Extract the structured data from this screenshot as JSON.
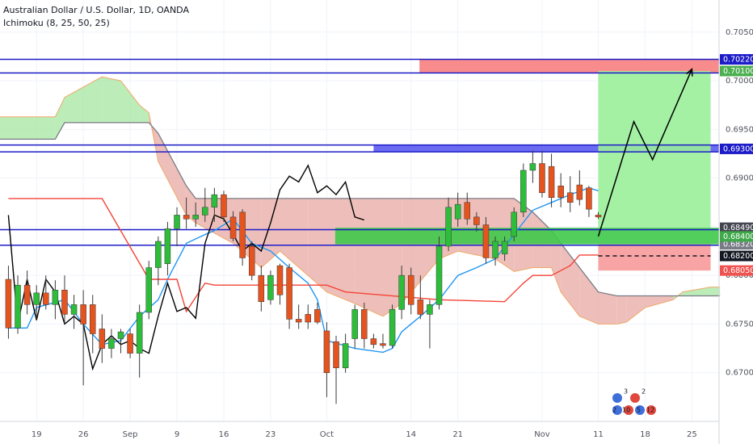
{
  "chart_data": {
    "type": "candlestick",
    "title": "Australian Dollar / U.S. Dollar, 1D, OANDA",
    "subtitle": "Ichimoku (8, 25, 50, 25)",
    "grid": true,
    "xlim": [
      -0.9,
      75.9
    ],
    "ylim": [
      0.665,
      0.7083
    ],
    "xticks": [
      {
        "value": 3,
        "label": "19"
      },
      {
        "value": 8,
        "label": "26"
      },
      {
        "value": 13,
        "label": "Sep"
      },
      {
        "value": 18,
        "label": "9"
      },
      {
        "value": 23,
        "label": "16"
      },
      {
        "value": 28,
        "label": "23"
      },
      {
        "value": 34,
        "label": "Oct"
      },
      {
        "value": 43,
        "label": "14"
      },
      {
        "value": 48,
        "label": "21"
      },
      {
        "value": 57,
        "label": "Nov"
      },
      {
        "value": 63,
        "label": "11"
      },
      {
        "value": 68,
        "label": "18"
      },
      {
        "value": 73,
        "label": "25"
      }
    ],
    "yticks": [
      {
        "value": 0.705,
        "label": "0.70500"
      },
      {
        "value": 0.7,
        "label": "0.70000"
      },
      {
        "value": 0.695,
        "label": "0.69500"
      },
      {
        "value": 0.69,
        "label": "0.69000"
      },
      {
        "value": 0.685,
        "label": "0.68500"
      },
      {
        "value": 0.68,
        "label": "0.68000"
      },
      {
        "value": 0.675,
        "label": "0.67500"
      },
      {
        "value": 0.67,
        "label": "0.67000"
      }
    ],
    "up_color": "#2dbd3a",
    "down_color": "#e5531f",
    "open": [
      0.6796,
      0.6746,
      0.679,
      0.677,
      0.6782,
      0.677,
      0.6785,
      0.676,
      0.677,
      0.677,
      0.6745,
      0.6725,
      0.6735,
      0.674,
      0.672,
      0.6762,
      0.6808,
      0.6812,
      0.6848,
      0.6862,
      0.6858,
      0.6862,
      0.687,
      0.6883,
      0.686,
      0.6865,
      0.683,
      0.68,
      0.6775,
      0.681,
      0.6808,
      0.6755,
      0.676,
      0.6765,
      0.6743,
      0.6732,
      0.6705,
      0.6735,
      0.6765,
      0.6735,
      0.673,
      0.6728,
      0.6765,
      0.68,
      0.6775,
      0.676,
      0.677,
      0.683,
      0.6858,
      0.6875,
      0.686,
      0.6852,
      0.6818,
      0.6822,
      0.684,
      0.6865,
      0.6908,
      0.6915,
      0.6912,
      0.6892,
      0.6885,
      0.6893,
      0.689,
      0.6862
    ],
    "high": [
      0.681,
      0.68,
      0.6805,
      0.679,
      0.68,
      0.6795,
      0.68,
      0.678,
      0.6785,
      0.678,
      0.676,
      0.6745,
      0.6745,
      0.6745,
      0.677,
      0.6815,
      0.684,
      0.6855,
      0.687,
      0.688,
      0.6875,
      0.689,
      0.689,
      0.6887,
      0.6866,
      0.6868,
      0.6835,
      0.681,
      0.6805,
      0.6812,
      0.6812,
      0.677,
      0.677,
      0.6772,
      0.6752,
      0.6738,
      0.674,
      0.677,
      0.6772,
      0.674,
      0.674,
      0.677,
      0.681,
      0.6808,
      0.68,
      0.6775,
      0.684,
      0.688,
      0.6885,
      0.6885,
      0.6865,
      0.686,
      0.684,
      0.684,
      0.687,
      0.6915,
      0.6928,
      0.6928,
      0.6925,
      0.6905,
      0.6902,
      0.6908,
      0.6892,
      0.6865
    ],
    "low": [
      0.6735,
      0.674,
      0.676,
      0.6755,
      0.6765,
      0.6755,
      0.675,
      0.6745,
      0.6687,
      0.672,
      0.671,
      0.6715,
      0.672,
      0.6715,
      0.6695,
      0.6755,
      0.679,
      0.68,
      0.683,
      0.6848,
      0.685,
      0.6855,
      0.6855,
      0.6855,
      0.6835,
      0.681,
      0.6795,
      0.6763,
      0.677,
      0.677,
      0.6745,
      0.6745,
      0.6745,
      0.675,
      0.6675,
      0.6668,
      0.67,
      0.6725,
      0.6725,
      0.6725,
      0.6725,
      0.6725,
      0.6755,
      0.676,
      0.6755,
      0.6725,
      0.6765,
      0.6825,
      0.685,
      0.6852,
      0.6845,
      0.6812,
      0.681,
      0.6815,
      0.6835,
      0.686,
      0.6895,
      0.688,
      0.687,
      0.687,
      0.6865,
      0.6872,
      0.686,
      0.6858
    ],
    "close": [
      0.6746,
      0.679,
      0.677,
      0.6782,
      0.677,
      0.6785,
      0.676,
      0.677,
      0.675,
      0.674,
      0.6725,
      0.6735,
      0.6742,
      0.672,
      0.6762,
      0.6808,
      0.6835,
      0.6848,
      0.6862,
      0.6858,
      0.6862,
      0.687,
      0.6883,
      0.686,
      0.6838,
      0.6818,
      0.68,
      0.6773,
      0.68,
      0.678,
      0.6755,
      0.6752,
      0.6752,
      0.6752,
      0.67,
      0.6705,
      0.673,
      0.6765,
      0.6735,
      0.6729,
      0.6728,
      0.6765,
      0.68,
      0.677,
      0.676,
      0.677,
      0.683,
      0.687,
      0.6873,
      0.6858,
      0.6852,
      0.6818,
      0.6835,
      0.6835,
      0.6865,
      0.6908,
      0.6915,
      0.6885,
      0.688,
      0.688,
      0.6875,
      0.6878,
      0.6868,
      0.686
    ],
    "cloud": {
      "up_color": "#a5e6a0",
      "down_color": "#e8aaa3",
      "a_color": "#f0a868",
      "b_color": "#787b86",
      "x": [
        -1,
        5,
        6,
        10,
        12,
        14,
        15,
        16,
        19,
        20,
        24,
        27,
        29,
        32,
        34,
        37,
        40,
        42,
        46,
        48,
        52,
        54,
        56,
        58,
        59,
        61,
        63,
        65,
        66,
        68,
        71,
        72,
        75,
        76
      ],
      "span_a": [
        0.6963,
        0.6963,
        0.6983,
        0.7004,
        0.7,
        0.6975,
        0.6967,
        0.6917,
        0.6862,
        0.6854,
        0.6833,
        0.6808,
        0.6825,
        0.68,
        0.6783,
        0.6771,
        0.6758,
        0.6771,
        0.6817,
        0.6825,
        0.6817,
        0.6804,
        0.6808,
        0.6808,
        0.6783,
        0.6758,
        0.675,
        0.675,
        0.6752,
        0.6767,
        0.6775,
        0.6783,
        0.6788,
        0.6788
      ],
      "span_b": [
        0.694,
        0.694,
        0.6957,
        0.6957,
        0.6957,
        0.6957,
        0.6957,
        0.6946,
        0.6892,
        0.6879,
        0.6879,
        0.6879,
        0.6879,
        0.6879,
        0.6879,
        0.6879,
        0.6879,
        0.6879,
        0.6879,
        0.6879,
        0.6879,
        0.6879,
        0.6865,
        0.6846,
        0.6833,
        0.6808,
        0.6783,
        0.6779,
        0.6779,
        0.6779,
        0.6779,
        0.6779,
        0.6779,
        0.6779
      ]
    },
    "lines": [
      {
        "color": "#2196f3",
        "x": [
          0,
          2,
          3,
          6,
          8,
          10,
          12,
          14,
          16,
          17,
          19,
          21,
          22,
          24,
          26,
          28,
          30,
          32,
          33,
          34,
          37,
          40,
          41,
          42,
          44,
          46,
          48,
          50,
          52,
          54,
          56,
          58,
          60,
          62,
          63
        ],
        "values": [
          0.6746,
          0.6746,
          0.6767,
          0.6775,
          0.675,
          0.6729,
          0.6733,
          0.6758,
          0.6775,
          0.6796,
          0.6833,
          0.6842,
          0.6846,
          0.6858,
          0.6833,
          0.6825,
          0.6808,
          0.6792,
          0.6775,
          0.6733,
          0.6725,
          0.6721,
          0.6725,
          0.6742,
          0.6758,
          0.6775,
          0.68,
          0.6808,
          0.6817,
          0.6842,
          0.6867,
          0.6875,
          0.6883,
          0.689,
          0.6887
        ]
      },
      {
        "color": "#f44336",
        "x": [
          0,
          10,
          15,
          18,
          19,
          21,
          22,
          34,
          36,
          46,
          53,
          55,
          56,
          58,
          60,
          61,
          63
        ],
        "values": [
          0.6879,
          0.6879,
          0.6796,
          0.6796,
          0.6763,
          0.6792,
          0.679,
          0.679,
          0.6783,
          0.6775,
          0.6773,
          0.6792,
          0.68,
          0.68,
          0.681,
          0.6821,
          0.6821
        ]
      },
      {
        "color": "#000000",
        "x": [
          0,
          1,
          2,
          3,
          4,
          5,
          6,
          7,
          8,
          9,
          10,
          11,
          12,
          13,
          14,
          15,
          16,
          17,
          18,
          19,
          20,
          21,
          22,
          23,
          24,
          25,
          26,
          27,
          28,
          29,
          30,
          31,
          32,
          33,
          34,
          35,
          36,
          37,
          38
        ],
        "values": [
          0.6862,
          0.675,
          0.6796,
          0.6754,
          0.6796,
          0.6783,
          0.675,
          0.6758,
          0.675,
          0.6704,
          0.6729,
          0.6738,
          0.6729,
          0.6733,
          0.6725,
          0.672,
          0.6758,
          0.6792,
          0.6763,
          0.6767,
          0.6756,
          0.6833,
          0.6862,
          0.6858,
          0.6842,
          0.6825,
          0.6833,
          0.6825,
          0.6854,
          0.6888,
          0.6902,
          0.6896,
          0.6913,
          0.6885,
          0.6892,
          0.6883,
          0.6896,
          0.686,
          0.6857
        ]
      }
    ],
    "zones": [
      {
        "x0": 43.9,
        "x1": 75.9,
        "low": 0.7008,
        "high": 0.7022,
        "color": "#f77f7f"
      },
      {
        "x0": 39,
        "x1": 75.9,
        "low": 0.6927,
        "high": 0.6934,
        "color": "#5b5bef"
      },
      {
        "x0": 63,
        "x1": 75,
        "low": 0.6849,
        "high": 0.701,
        "color": "#9af09a"
      },
      {
        "x0": 63,
        "x1": 75,
        "low": 0.6805,
        "high": 0.6832,
        "color": "#f89a9a"
      },
      {
        "x0": 34.9,
        "x1": 75.9,
        "low": 0.6832,
        "high": 0.6849,
        "color": "#3fc94a"
      }
    ],
    "levels": [
      {
        "value": 0.7022,
        "color": "#1c1cc8"
      },
      {
        "value": 0.7008,
        "color": "#1c1cc8"
      },
      {
        "value": 0.6934,
        "color": "#1c1cc8"
      },
      {
        "value": 0.6927,
        "color": "#1c1cc8"
      },
      {
        "value": 0.6847,
        "color": "#1c1cc8"
      },
      {
        "value": 0.6831,
        "color": "#1c1cc8"
      }
    ],
    "stop_line": {
      "value": 0.682,
      "x0": 63,
      "x1": 75,
      "color": "#131722"
    },
    "projection": {
      "color": "#000000",
      "x": [
        63,
        66.8,
        68.8,
        73
      ],
      "values": [
        0.684,
        0.6958,
        0.6919,
        0.7012
      ]
    },
    "price_tags": [
      {
        "value": 0.7022,
        "label": "0.70220",
        "color": "#1c1cc8"
      },
      {
        "value": 0.701,
        "label": "0.70100",
        "color": "#4caf50"
      },
      {
        "value": 0.693,
        "label": "0.69300",
        "color": "#1c1cc8"
      },
      {
        "value": 0.6849,
        "label": "0.68490",
        "color": "#434651"
      },
      {
        "value": 0.6832,
        "label": "0.68320",
        "color": "#787b86"
      },
      {
        "value": 0.684,
        "label": "0.68400",
        "color": "#3fa84a"
      },
      {
        "value": 0.682,
        "label": "0.68200",
        "color": "#131722"
      },
      {
        "value": 0.6805,
        "label": "0.68050",
        "color": "#ef5350"
      }
    ],
    "events": [
      "3",
      "2",
      "2",
      "10",
      "5",
      "12"
    ]
  }
}
